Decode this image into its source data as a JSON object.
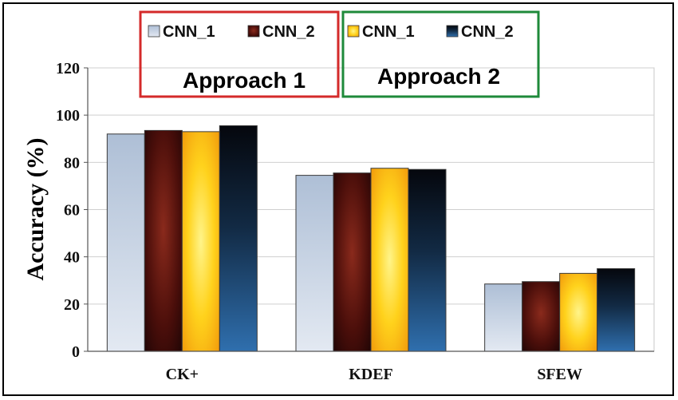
{
  "chart_data": {
    "type": "bar",
    "title": "",
    "xlabel": "",
    "ylabel": "Accuracy (%)",
    "ylim": [
      0,
      120
    ],
    "yticks": [
      0,
      20,
      40,
      60,
      80,
      100,
      120
    ],
    "grid": true,
    "categories": [
      "CK+",
      "KDEF",
      "SFEW"
    ],
    "series": [
      {
        "name": "CNN_1",
        "group": "Approach 1",
        "color": "#c9d6e8",
        "values": [
          92,
          74.5,
          28.5
        ]
      },
      {
        "name": "CNN_2",
        "group": "Approach 1",
        "color": "#6e1a14",
        "values": [
          93.5,
          75.5,
          29.5
        ]
      },
      {
        "name": "CNN_1",
        "group": "Approach 2",
        "color": "#f7c21a",
        "values": [
          93,
          77.5,
          33
        ]
      },
      {
        "name": "CNN_2",
        "group": "Approach 2",
        "color": "#1d3f66",
        "values": [
          95.5,
          77,
          35
        ]
      }
    ],
    "legend_groups": [
      {
        "label": "Approach 1",
        "border_color": "#d42a2a"
      },
      {
        "label": "Approach 2",
        "border_color": "#1e8a3a"
      }
    ],
    "legend_position": "top"
  }
}
